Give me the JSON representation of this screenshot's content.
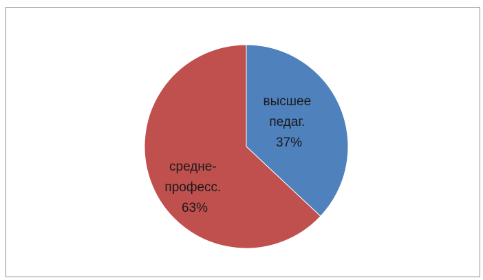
{
  "chart_data": {
    "type": "pie",
    "title": "",
    "slices": [
      {
        "label_lines": [
          "высшее",
          "педаг.",
          "37%"
        ],
        "value": 37,
        "color": "#4f81bd"
      },
      {
        "label_lines": [
          "средне-",
          "професс.",
          "63%"
        ],
        "value": 63,
        "color": "#c0504d"
      }
    ],
    "start_angle_deg": 0,
    "direction": "clockwise",
    "legend": "none",
    "border": true
  }
}
